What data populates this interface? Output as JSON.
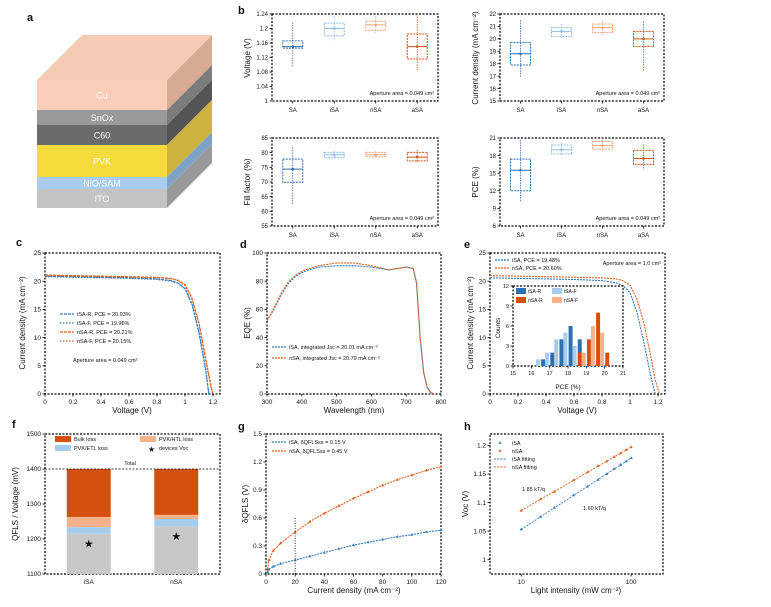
{
  "panel_labels": {
    "a": "a",
    "b": "b",
    "c": "c",
    "d": "d",
    "e": "e",
    "f": "f",
    "g": "g",
    "h": "h"
  },
  "device_stack": {
    "top_color": "#f6cbb5",
    "layers": [
      {
        "label": "Cu",
        "color": "#f9cdb8",
        "side": "#d9ab95"
      },
      {
        "label": "SnOx",
        "color": "#9a9a9a",
        "side": "#7d7d7d"
      },
      {
        "label": "C60",
        "color": "#6b6b6b",
        "side": "#555555"
      },
      {
        "label": "PVK",
        "color": "#f5dc3c",
        "side": "#cdb240"
      },
      {
        "label": "NiO/SAM",
        "color": "#a9cdf0",
        "side": "#7fa3c6"
      },
      {
        "label": "ITO",
        "color": "#c4c4c4",
        "side": "#9a9a9a"
      }
    ]
  },
  "colors": {
    "SA": "#2e6fae",
    "iSA": "#8dbde9",
    "nSA": "#f3a077",
    "aSA": "#d4500f",
    "blue": "#2f7cc1",
    "orange": "#e0601c",
    "gray": "#c8c8c8"
  },
  "chart_data": [
    {
      "id": "b1",
      "type": "box",
      "categories": [
        "SA",
        "iSA",
        "nSA",
        "aSA"
      ],
      "ylabel": "Voltage (V)",
      "ylim": [
        1.0,
        1.24
      ],
      "yticks": [
        1.0,
        1.04,
        1.08,
        1.12,
        1.16,
        1.2,
        1.24
      ],
      "boxes": [
        {
          "min": 1.096,
          "q1": 1.146,
          "median": 1.15,
          "q3": 1.166,
          "max": 1.217
        },
        {
          "min": 1.165,
          "q1": 1.18,
          "median": 1.2,
          "q3": 1.215,
          "max": 1.235
        },
        {
          "min": 1.185,
          "q1": 1.195,
          "median": 1.21,
          "q3": 1.22,
          "max": 1.24
        },
        {
          "min": 1.086,
          "q1": 1.116,
          "median": 1.15,
          "q3": 1.185,
          "max": 1.24
        }
      ],
      "annotation": "Aperture area = 0.049 cm²"
    },
    {
      "id": "b2",
      "type": "box",
      "categories": [
        "SA",
        "iSA",
        "nSA",
        "aSA"
      ],
      "ylabel": "Current density (mA cm⁻²)",
      "ylim": [
        15,
        22
      ],
      "yticks": [
        15,
        16,
        17,
        18,
        19,
        20,
        21,
        22
      ],
      "boxes": [
        {
          "min": 16.9,
          "q1": 17.9,
          "median": 18.8,
          "q3": 19.7,
          "max": 21.5
        },
        {
          "min": 20.0,
          "q1": 20.2,
          "median": 20.6,
          "q3": 20.9,
          "max": 21.2
        },
        {
          "min": 20.3,
          "q1": 20.5,
          "median": 20.9,
          "q3": 21.2,
          "max": 21.4
        },
        {
          "min": 17.4,
          "q1": 19.4,
          "median": 20.0,
          "q3": 20.6,
          "max": 21.4
        }
      ],
      "annotation": "Aperture area = 0.049 cm²"
    },
    {
      "id": "b3",
      "type": "box",
      "categories": [
        "SA",
        "iSA",
        "nSA",
        "aSA"
      ],
      "ylabel": "Fill factor (%)",
      "ylim": [
        55,
        85
      ],
      "yticks": [
        55,
        60,
        65,
        70,
        75,
        80,
        85
      ],
      "boxes": [
        {
          "min": 62.5,
          "q1": 69.9,
          "median": 74.4,
          "q3": 77.8,
          "max": 81.8
        },
        {
          "min": 77.8,
          "q1": 78.4,
          "median": 79.3,
          "q3": 80.1,
          "max": 80.6
        },
        {
          "min": 78.2,
          "q1": 78.6,
          "median": 79.3,
          "q3": 80.1,
          "max": 80.5
        },
        {
          "min": 76.5,
          "q1": 77.2,
          "median": 78.5,
          "q3": 80.1,
          "max": 81.0
        }
      ],
      "annotation": "Aperture area = 0.049 cm²"
    },
    {
      "id": "b4",
      "type": "box",
      "categories": [
        "SA",
        "iSA",
        "nSA",
        "aSA"
      ],
      "ylabel": "PCE (%)",
      "ylim": [
        6,
        21
      ],
      "yticks": [
        6,
        9,
        12,
        15,
        18,
        21
      ],
      "boxes": [
        {
          "min": 10.1,
          "q1": 12.0,
          "median": 15.5,
          "q3": 17.4,
          "max": 20.7
        },
        {
          "min": 18.0,
          "q1": 18.3,
          "median": 19.0,
          "q3": 19.8,
          "max": 20.2
        },
        {
          "min": 18.8,
          "q1": 19.1,
          "median": 19.7,
          "q3": 20.4,
          "max": 20.7
        },
        {
          "min": 15.6,
          "q1": 16.5,
          "median": 17.5,
          "q3": 18.9,
          "max": 19.9
        }
      ],
      "annotation": "Aperture area = 0.049 cm²"
    },
    {
      "id": "c",
      "type": "line",
      "xlabel": "Voltage (V)",
      "ylabel": "Current density (mA cm⁻²)",
      "xlim": [
        0,
        1.25
      ],
      "ylim": [
        0,
        25
      ],
      "xticks": [
        0,
        0.2,
        0.4,
        0.6,
        0.8,
        1.0,
        1.2
      ],
      "yticks": [
        0,
        5,
        10,
        15,
        20,
        25
      ],
      "x": [
        0,
        0.2,
        0.4,
        0.6,
        0.8,
        0.9,
        0.95,
        1.0,
        1.05,
        1.1,
        1.15,
        1.17,
        1.19,
        1.2
      ],
      "series": [
        {
          "name": "iSA-R, PCE = 20.03%",
          "color": "#2f7cc1",
          "dash": "3,1",
          "values": [
            20.9,
            20.8,
            20.7,
            20.6,
            20.4,
            20.1,
            19.7,
            18.7,
            16.0,
            11.0,
            4.0,
            0,
            null,
            null
          ]
        },
        {
          "name": "iSA-F, PCE = 19.96%",
          "color": "#2f7cc1",
          "dash": "1.5,1.5",
          "values": [
            20.8,
            20.7,
            20.6,
            20.5,
            20.3,
            20.0,
            19.6,
            18.6,
            15.8,
            10.7,
            3.8,
            0,
            null,
            null
          ]
        },
        {
          "name": "nSA-R, PCE = 20.21%",
          "color": "#e0601c",
          "dash": "3,1",
          "values": [
            21.1,
            21.0,
            20.9,
            20.8,
            20.7,
            20.5,
            20.2,
            19.4,
            17.0,
            12.6,
            6.0,
            3.5,
            1.0,
            0
          ]
        },
        {
          "name": "nSA-F, PCE = 20.15%",
          "color": "#e0601c",
          "dash": "1.5,1.5",
          "values": [
            21.0,
            20.9,
            20.8,
            20.7,
            20.6,
            20.4,
            20.1,
            19.2,
            16.8,
            12.3,
            5.6,
            3.0,
            0.6,
            0
          ]
        }
      ],
      "annotation": "Aperture area = 0.049 cm²",
      "legend": "center-left"
    },
    {
      "id": "d",
      "type": "line",
      "xlabel": "Wavelength (nm)",
      "ylabel": "EQE (%)",
      "xlim": [
        300,
        800
      ],
      "ylim": [
        0,
        100
      ],
      "xticks": [
        300,
        400,
        500,
        600,
        700,
        800
      ],
      "yticks": [
        0,
        20,
        40,
        60,
        80,
        100
      ],
      "x": [
        300,
        320,
        340,
        360,
        380,
        400,
        420,
        450,
        500,
        550,
        600,
        650,
        700,
        720,
        730,
        740,
        750,
        760,
        770,
        780
      ],
      "series": [
        {
          "name": "iSA, integrated Jsc = 20.01 mA cm⁻²",
          "color": "#2f7cc1",
          "dash": "2,1",
          "values": [
            52,
            60,
            70,
            78,
            83,
            86,
            88,
            90,
            91,
            91,
            90,
            88,
            90,
            89,
            78,
            40,
            15,
            5,
            1,
            0
          ]
        },
        {
          "name": "nSA, integrated Jsc = 20.79 mA cm⁻²",
          "color": "#e0601c",
          "dash": "2,1",
          "values": [
            52,
            61,
            71,
            79,
            84,
            87,
            89,
            91,
            93,
            93,
            91,
            88,
            90,
            89,
            79,
            41,
            16,
            5,
            1,
            0
          ]
        }
      ],
      "legend": "lower-left"
    },
    {
      "id": "e",
      "type": "line",
      "xlabel": "Voltage (V)",
      "ylabel": "Current density (mA cm⁻²)",
      "xlim": [
        0,
        1.25
      ],
      "ylim": [
        0,
        25
      ],
      "xticks": [
        0,
        0.2,
        0.4,
        0.6,
        0.8,
        1.0,
        1.2
      ],
      "yticks": [
        0,
        5,
        10,
        15,
        20,
        25
      ],
      "x": [
        0,
        0.2,
        0.4,
        0.6,
        0.8,
        0.9,
        0.95,
        1.0,
        1.05,
        1.1,
        1.15,
        1.18,
        1.21
      ],
      "series": [
        {
          "name": "iSA, PCE = 19.48%",
          "color": "#2f7cc1",
          "dash": "2,1",
          "values": [
            20.6,
            20.5,
            20.4,
            20.3,
            20.1,
            19.7,
            19.2,
            18.0,
            14.5,
            9.0,
            3.0,
            0,
            null
          ]
        },
        {
          "name": "nSA, PCE = 20.60%",
          "color": "#e0601c",
          "dash": "2,1",
          "values": [
            21.0,
            20.9,
            20.8,
            20.7,
            20.6,
            20.4,
            20.1,
            19.3,
            16.8,
            12.5,
            6.5,
            2.5,
            0
          ]
        }
      ],
      "annotation": "Aperture area = 1.0 cm²",
      "legend": "top-left",
      "inset": {
        "type": "bar",
        "xlabel": "PCE (%)",
        "ylabel": "Counts",
        "xlim": [
          15,
          21
        ],
        "ylim": [
          0,
          12
        ],
        "xticks": [
          15,
          16,
          17,
          18,
          19,
          20,
          21
        ],
        "yticks": [
          0,
          3,
          6,
          9,
          12
        ],
        "bins": [
          16.0,
          16.5,
          17.0,
          17.5,
          18.0,
          18.5,
          19.0,
          19.5,
          20.0
        ],
        "series": [
          {
            "name": "iSA-R",
            "color": "#2e6fae",
            "values": [
              0,
              1,
              2,
              4,
              6,
              4,
              0,
              0,
              0
            ]
          },
          {
            "name": "iSA-F",
            "color": "#a7cdee",
            "values": [
              1,
              2,
              4,
              5,
              3,
              0,
              0,
              0,
              0
            ]
          },
          {
            "name": "nSA-R",
            "color": "#d4500f",
            "values": [
              0,
              0,
              0,
              0,
              0,
              2,
              4,
              8,
              2
            ]
          },
          {
            "name": "nSA-F",
            "color": "#f6b28c",
            "values": [
              0,
              0,
              0,
              0,
              0,
              2,
              6,
              5,
              0
            ]
          }
        ],
        "legend": "top-left"
      }
    },
    {
      "id": "f",
      "type": "stacked-bar",
      "ylabel": "QFLS / Voltage (mV)",
      "categories": [
        "iSA",
        "nSA"
      ],
      "ylim": [
        1100,
        1500
      ],
      "yticks": [
        1100,
        1200,
        1300,
        1400,
        1500
      ],
      "stack_tops": [
        {
          "name": "gray",
          "color": "#c8c8c8",
          "values": [
            1215,
            1236
          ]
        },
        {
          "name": "PVK/ETL loss",
          "color": "#a7cdee",
          "values": [
            1234,
            1257
          ]
        },
        {
          "name": "PVK/HTL loss",
          "color": "#f6b28c",
          "values": [
            1263,
            1269
          ]
        },
        {
          "name": "Bulk loss",
          "color": "#d4500f",
          "values": [
            1400,
            1400
          ]
        }
      ],
      "devices_voc": {
        "name": "devices Voc",
        "color": "#2e6fae",
        "values": [
          1186,
          1207
        ]
      },
      "reference_line": 1400,
      "reference_label": "Total",
      "legend": "top"
    },
    {
      "id": "g",
      "type": "line",
      "xlabel": "Current density (mA cm⁻²)",
      "ylabel": "δQFLS (V)",
      "xlim": [
        0,
        120
      ],
      "ylim": [
        0,
        1.5
      ],
      "xticks": [
        0,
        20,
        40,
        60,
        80,
        100,
        120
      ],
      "yticks": [
        0,
        0.3,
        0.6,
        0.9,
        1.2,
        1.5
      ],
      "x": [
        1,
        2,
        5,
        10,
        20,
        30,
        40,
        50,
        60,
        70,
        80,
        90,
        100,
        110,
        120
      ],
      "series": [
        {
          "name": "iSA, δQFLSss = 0.15 V",
          "color": "#2f7cc1",
          "values": [
            0.02,
            0.05,
            0.08,
            0.11,
            0.15,
            0.19,
            0.23,
            0.27,
            0.31,
            0.34,
            0.37,
            0.4,
            0.42,
            0.45,
            0.47
          ]
        },
        {
          "name": "nSA, δQFLSss = 0.45 V",
          "color": "#e0601c",
          "values": [
            0.05,
            0.15,
            0.25,
            0.33,
            0.45,
            0.56,
            0.65,
            0.73,
            0.81,
            0.88,
            0.95,
            1.01,
            1.06,
            1.11,
            1.15
          ]
        }
      ],
      "reference_x": 20,
      "legend": "top-left"
    },
    {
      "id": "h",
      "type": "scatter",
      "xlabel": "Light intensity (mW cm⁻²)",
      "ylabel": "Voc (V)",
      "xscale": "log",
      "xlim": [
        5.2,
        195
      ],
      "ylim": [
        0.975,
        1.22
      ],
      "xticks": [
        10,
        100
      ],
      "yticks": [
        1.0,
        1.05,
        1.1,
        1.15,
        1.2
      ],
      "x": [
        10,
        15,
        20,
        30,
        40,
        50,
        60,
        70,
        80,
        90,
        100
      ],
      "series": [
        {
          "name": "iSA",
          "fit_name": "iSA fitting",
          "color": "#2f7cc1",
          "values": [
            1.053,
            1.075,
            1.091,
            1.113,
            1.128,
            1.14,
            1.15,
            1.159,
            1.166,
            1.172,
            1.178
          ],
          "fit_label": "1.60 kT/q"
        },
        {
          "name": "nSA",
          "fit_name": "nSA fitting",
          "color": "#e0601c",
          "values": [
            1.086,
            1.106,
            1.119,
            1.139,
            1.153,
            1.164,
            1.172,
            1.18,
            1.186,
            1.192,
            1.197
          ],
          "fit_label": "1.85 kT/q"
        }
      ],
      "legend": "top-left"
    }
  ]
}
